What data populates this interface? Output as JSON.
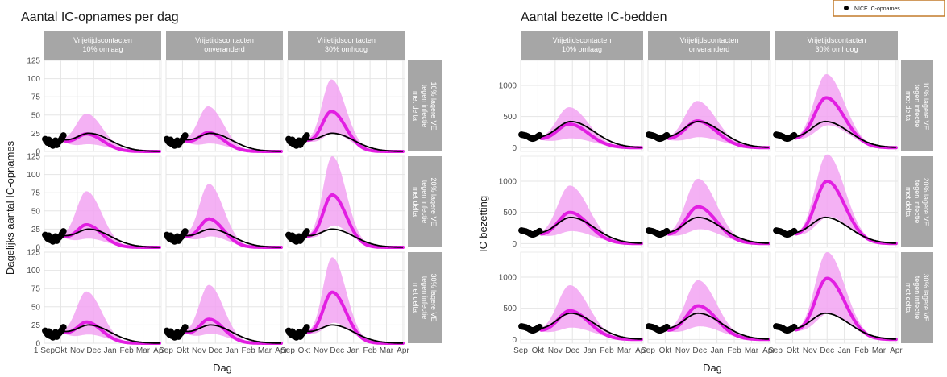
{
  "legend": {
    "label": "NICE IC-opnames"
  },
  "colors": {
    "model": "#e21ee2",
    "band": "#f2a3f2",
    "reference": "#000000",
    "strip": "#a6a6a6",
    "grid": "#e5e5e5",
    "legend_border": "#c27a2a"
  },
  "chart_data": [
    {
      "type": "line",
      "title": "Aantal IC-opnames per dag",
      "xlabel": "Dag",
      "ylabel": "Dagelijks aantal IC-opnames",
      "ylim": [
        0,
        125
      ],
      "yticks": [
        "0",
        "25",
        "50",
        "75",
        "100",
        "125"
      ],
      "xtick_labels": [
        "1 Sep",
        "Okt",
        "Nov",
        "Dec",
        "Jan",
        "Feb",
        "Mar",
        "Apr"
      ],
      "xtick_labels_inner": [
        "Sep",
        "Okt",
        "Nov",
        "Dec",
        "Jan",
        "Feb",
        "Mar",
        "Apr"
      ],
      "columns": [
        "Vrijetijdscontacten\n10% omlaag",
        "Vrijetijdscontacten\nonveranderd",
        "Vrijetijdscontacten\n30% omhoog"
      ],
      "rows": [
        "10% lagere VE\ntegen infectie\nmet delta",
        "20% lagere VE\ntegen infectie\nmet delta",
        "30% lagere VE\ntegen infectie\nmet delta"
      ],
      "months_x": [
        0,
        1,
        2,
        3,
        4,
        5,
        6,
        7
      ],
      "observed": {
        "name": "NICE IC-opnames",
        "x": [
          0.05,
          0.12,
          0.2,
          0.28,
          0.36,
          0.44,
          0.52,
          0.6,
          0.68,
          0.76,
          0.84,
          0.92,
          1.0,
          1.08,
          1.16
        ],
        "y": [
          17,
          14,
          12,
          16,
          10,
          13,
          8,
          11,
          15,
          9,
          12,
          14,
          16,
          19,
          22
        ]
      },
      "reference": {
        "peak": 25,
        "peak_x": 2.7,
        "spread": 1.05
      },
      "panels": [
        [
          {
            "peak": 24,
            "hi": 52,
            "lo": 10,
            "peak_x": 2.55,
            "spread": 0.8
          },
          {
            "peak": 26,
            "hi": 62,
            "lo": 11,
            "peak_x": 2.55,
            "spread": 0.75
          },
          {
            "peak": 55,
            "hi": 99,
            "lo": 25,
            "peak_x": 2.65,
            "spread": 0.7
          }
        ],
        [
          {
            "peak": 31,
            "hi": 77,
            "lo": 12,
            "peak_x": 2.55,
            "spread": 0.75
          },
          {
            "peak": 39,
            "hi": 87,
            "lo": 15,
            "peak_x": 2.6,
            "spread": 0.72
          },
          {
            "peak": 72,
            "hi": 125,
            "lo": 30,
            "peak_x": 2.7,
            "spread": 0.68
          }
        ],
        [
          {
            "peak": 29,
            "hi": 71,
            "lo": 12,
            "peak_x": 2.55,
            "spread": 0.75
          },
          {
            "peak": 33,
            "hi": 80,
            "lo": 13,
            "peak_x": 2.6,
            "spread": 0.72
          },
          {
            "peak": 70,
            "hi": 118,
            "lo": 28,
            "peak_x": 2.7,
            "spread": 0.68
          }
        ]
      ]
    },
    {
      "type": "line",
      "title": "Aantal bezette IC-bedden",
      "xlabel": "Dag",
      "ylabel": "IC-bezetting",
      "ylim": [
        -60,
        1400
      ],
      "yticks": [
        "0",
        "500",
        "1000"
      ],
      "ytick_values": [
        0,
        500,
        1000
      ],
      "xtick_labels": [
        "Sep",
        "Okt",
        "Nov",
        "Dec",
        "Jan",
        "Feb",
        "Mar",
        "Apr"
      ],
      "xtick_labels_inner": [
        "Sep",
        "Okt",
        "Nov",
        "Dec",
        "Jan",
        "Feb",
        "Mar",
        "Apr"
      ],
      "columns": [
        "Vrijetijdscontacten\n10% omlaag",
        "Vrijetijdscontacten\nonveranderd",
        "Vrijetijdscontacten\n30% omhoog"
      ],
      "rows": [
        "10% lagere VE\ntegen infectie\nmet delta",
        "20% lagere VE\ntegen infectie\nmet delta",
        "30% lagere VE\ntegen infectie\nmet delta"
      ],
      "months_x": [
        0,
        1,
        2,
        3,
        4,
        5,
        6,
        7
      ],
      "observed": {
        "name": "NICE IC-opnames",
        "x": [
          0.05,
          0.13,
          0.21,
          0.29,
          0.37,
          0.45,
          0.53,
          0.61,
          0.69,
          0.77,
          0.85,
          0.93,
          1.01,
          1.09
        ],
        "y": [
          210,
          205,
          200,
          195,
          185,
          175,
          160,
          150,
          145,
          150,
          160,
          170,
          185,
          200
        ]
      },
      "reference": {
        "peak": 420,
        "peak_x": 2.9,
        "spread": 1.1
      },
      "panels": [
        [
          {
            "peak": 380,
            "hi": 650,
            "lo": 150,
            "peak_x": 2.8,
            "spread": 0.9
          },
          {
            "peak": 430,
            "hi": 750,
            "lo": 170,
            "peak_x": 2.85,
            "spread": 0.9
          },
          {
            "peak": 800,
            "hi": 1180,
            "lo": 360,
            "peak_x": 2.95,
            "spread": 0.85
          }
        ],
        [
          {
            "peak": 500,
            "hi": 930,
            "lo": 200,
            "peak_x": 2.85,
            "spread": 0.88
          },
          {
            "peak": 590,
            "hi": 1040,
            "lo": 230,
            "peak_x": 2.9,
            "spread": 0.86
          },
          {
            "peak": 1000,
            "hi": 1430,
            "lo": 430,
            "peak_x": 3.0,
            "spread": 0.83
          }
        ],
        [
          {
            "peak": 460,
            "hi": 870,
            "lo": 190,
            "peak_x": 2.85,
            "spread": 0.88
          },
          {
            "peak": 540,
            "hi": 950,
            "lo": 210,
            "peak_x": 2.9,
            "spread": 0.86
          },
          {
            "peak": 980,
            "hi": 1400,
            "lo": 420,
            "peak_x": 3.0,
            "spread": 0.83
          }
        ]
      ]
    }
  ]
}
